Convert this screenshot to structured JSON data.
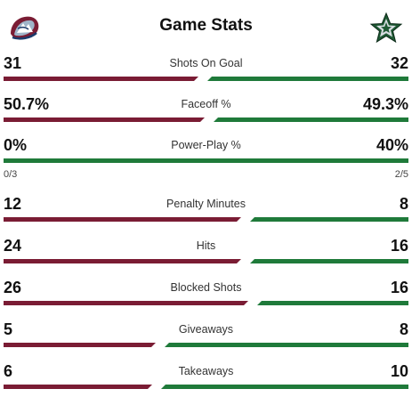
{
  "header": {
    "title": "Game Stats",
    "home_logo": "colorado-avalanche-logo-icon",
    "away_logo": "dallas-stars-logo-icon"
  },
  "colors": {
    "home": "#7a1c34",
    "away": "#1f7a3a"
  },
  "stats": [
    {
      "label": "Shots On Goal",
      "home": "31",
      "away": "32",
      "home_share": 0.492
    },
    {
      "label": "Faceoff %",
      "home": "50.7%",
      "away": "49.3%",
      "home_share": 0.507
    },
    {
      "label": "Power-Play %",
      "home": "0%",
      "away": "40%",
      "home_share": 0.0,
      "home_sub": "0/3",
      "away_sub": "2/5"
    },
    {
      "label": "Penalty Minutes",
      "home": "12",
      "away": "8",
      "home_share": 0.6
    },
    {
      "label": "Hits",
      "home": "24",
      "away": "16",
      "home_share": 0.6
    },
    {
      "label": "Blocked Shots",
      "home": "26",
      "away": "16",
      "home_share": 0.619
    },
    {
      "label": "Giveaways",
      "home": "5",
      "away": "8",
      "home_share": 0.385
    },
    {
      "label": "Takeaways",
      "home": "6",
      "away": "10",
      "home_share": 0.375
    }
  ]
}
